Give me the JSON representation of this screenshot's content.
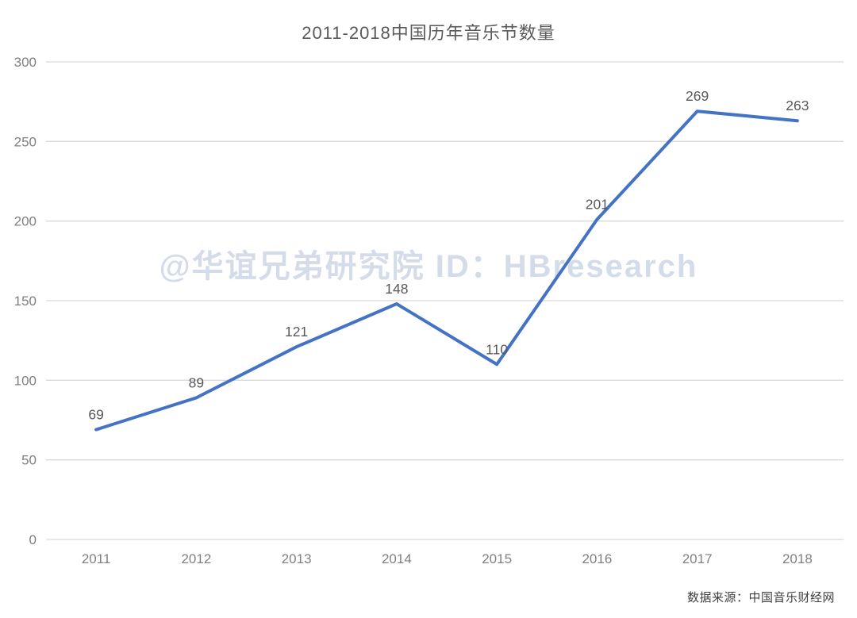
{
  "chart_data": {
    "type": "line",
    "title": "2011-2018中国历年音乐节数量",
    "categories": [
      "2011",
      "2012",
      "2013",
      "2014",
      "2015",
      "2016",
      "2017",
      "2018"
    ],
    "values": [
      69,
      89,
      121,
      148,
      110,
      201,
      269,
      263
    ],
    "ylim": [
      0,
      300
    ],
    "yticks": [
      0,
      50,
      100,
      150,
      200,
      250,
      300
    ],
    "grid": "horizontal",
    "legend": "none",
    "data_labels_shown": true,
    "line_color": "#4472C4",
    "grid_color": "#D9D9D9",
    "data_label_color": "#595959",
    "axis_tick_color": "#808080",
    "watermark": "@华谊兄弟研究院 ID：HBresearch",
    "source": "数据来源：中国音乐财经网"
  }
}
